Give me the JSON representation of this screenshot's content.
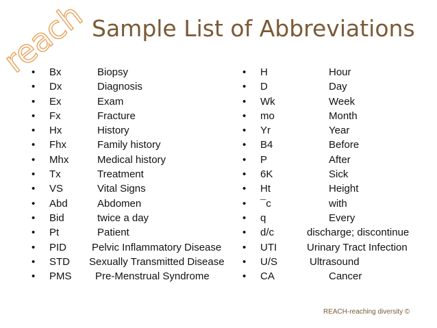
{
  "logo": {
    "text": "reach"
  },
  "title": "Sample List of Abbreviations",
  "bullet_char": "•",
  "left_column": [
    {
      "abbr": "Bx",
      "meaning": "Biopsy"
    },
    {
      "abbr": "Dx",
      "meaning": "Diagnosis"
    },
    {
      "abbr": "Ex",
      "meaning": "Exam"
    },
    {
      "abbr": "Fx",
      "meaning": "Fracture"
    },
    {
      "abbr": "Hx",
      "meaning": "History"
    },
    {
      "abbr": "Fhx",
      "meaning": "Family history"
    },
    {
      "abbr": "Mhx",
      "meaning": "Medical history"
    },
    {
      "abbr": "Tx",
      "meaning": "Treatment"
    },
    {
      "abbr": "VS",
      "meaning": "Vital Signs"
    },
    {
      "abbr": "Abd",
      "meaning": "Abdomen"
    },
    {
      "abbr": "Bid",
      "meaning": "twice a day"
    },
    {
      "abbr": "Pt",
      "meaning": "Patient"
    },
    {
      "abbr": "PID",
      "meaning": "Pelvic Inflammatory Disease"
    },
    {
      "abbr": "STD",
      "meaning": "Sexually Transmitted Disease"
    },
    {
      "abbr": "PMS",
      "meaning": "Pre-Menstrual Syndrome"
    }
  ],
  "right_column": [
    {
      "abbr": "H",
      "meaning": "Hour"
    },
    {
      "abbr": "D",
      "meaning": "Day"
    },
    {
      "abbr": "Wk",
      "meaning": "Week"
    },
    {
      "abbr": "mo",
      "meaning": "Month"
    },
    {
      "abbr": "Yr",
      "meaning": "Year"
    },
    {
      "abbr": "B4",
      "meaning": "Before"
    },
    {
      "abbr": "P",
      "meaning": "After"
    },
    {
      "abbr": "6K",
      "meaning": "Sick"
    },
    {
      "abbr": "Ht",
      "meaning": "Height"
    },
    {
      "abbr": "¯c",
      "meaning": "with"
    },
    {
      "abbr": "q",
      "meaning": "Every"
    },
    {
      "abbr": "d/c",
      "meaning": "discharge; discontinue"
    },
    {
      "abbr": "UTI",
      "meaning": "Urinary Tract Infection"
    },
    {
      "abbr": "U/S",
      "meaning": "Ultrasound"
    },
    {
      "abbr": "CA",
      "meaning": "Cancer"
    }
  ],
  "footer": "REACH-reaching diversity ©",
  "colors": {
    "brand_brown": "#7a5a36",
    "logo_orange": "#e8a25a",
    "text": "#111111"
  }
}
